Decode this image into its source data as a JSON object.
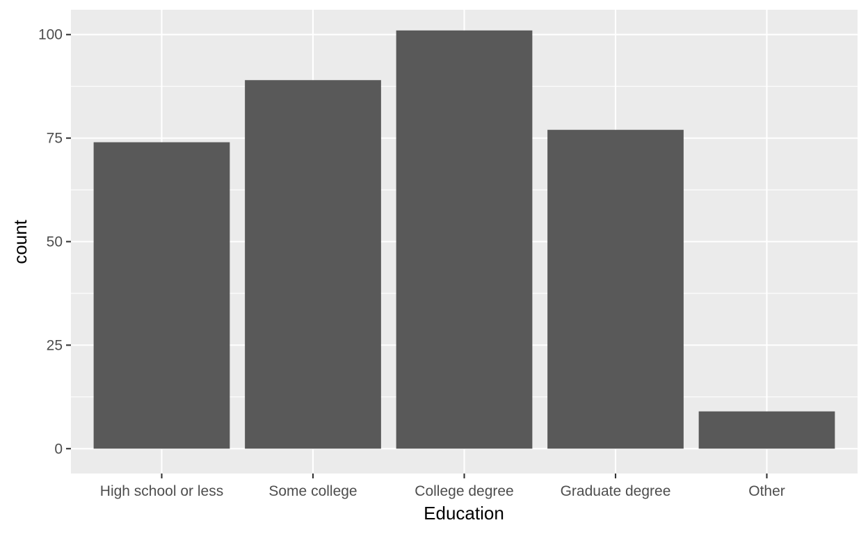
{
  "chart_data": {
    "type": "bar",
    "categories": [
      "High school or less",
      "Some college",
      "College degree",
      "Graduate degree",
      "Other"
    ],
    "values": [
      74,
      89,
      101,
      77,
      9
    ],
    "xlabel": "Education",
    "ylabel": "count",
    "ylim": [
      -6,
      106
    ],
    "yticks": [
      0,
      25,
      50,
      75,
      100
    ],
    "ytick_labels": [
      "0",
      "25",
      "50",
      "75",
      "100"
    ],
    "grid": true,
    "colors": {
      "bar": "#595959",
      "panel": "#ebebeb",
      "grid": "#ffffff"
    }
  }
}
